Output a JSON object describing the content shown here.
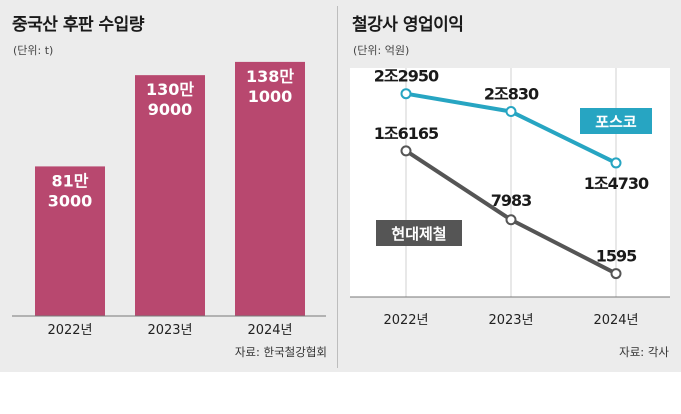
{
  "left": {
    "title": "중국산 후판 수입량",
    "unit": "(단위: t)",
    "source": "자료: 한국철강협회"
  },
  "right": {
    "title": "철강사 영업이익",
    "unit": "(단위: 억원)",
    "source": "자료: 각사"
  },
  "colors": {
    "bar": "#b8486f",
    "posco": "#27a5c2",
    "hyundai": "#555555",
    "plot_bg": "#ffffff",
    "panel_bg": "#ececec"
  },
  "chart_data": [
    {
      "type": "bar",
      "title": "중국산 후판 수입량",
      "unit": "t",
      "categories": [
        "2022년",
        "2023년",
        "2024년"
      ],
      "values": [
        813000,
        1309000,
        1381000
      ],
      "value_labels": [
        [
          "81만",
          "3000"
        ],
        [
          "130만",
          "9000"
        ],
        [
          "138만",
          "1000"
        ]
      ],
      "ylim": [
        0,
        1500000
      ]
    },
    {
      "type": "line",
      "title": "철강사 영업이익",
      "unit": "억원",
      "categories": [
        "2022년",
        "2023년",
        "2024년"
      ],
      "series": [
        {
          "name": "포스코",
          "values": [
            22950,
            20830,
            14730
          ],
          "labels": [
            "2조2950",
            "2조830",
            "1조4730"
          ]
        },
        {
          "name": "현대제철",
          "values": [
            16165,
            7983,
            1595
          ],
          "labels": [
            "1조6165",
            "7983",
            "1595"
          ]
        }
      ]
    }
  ]
}
